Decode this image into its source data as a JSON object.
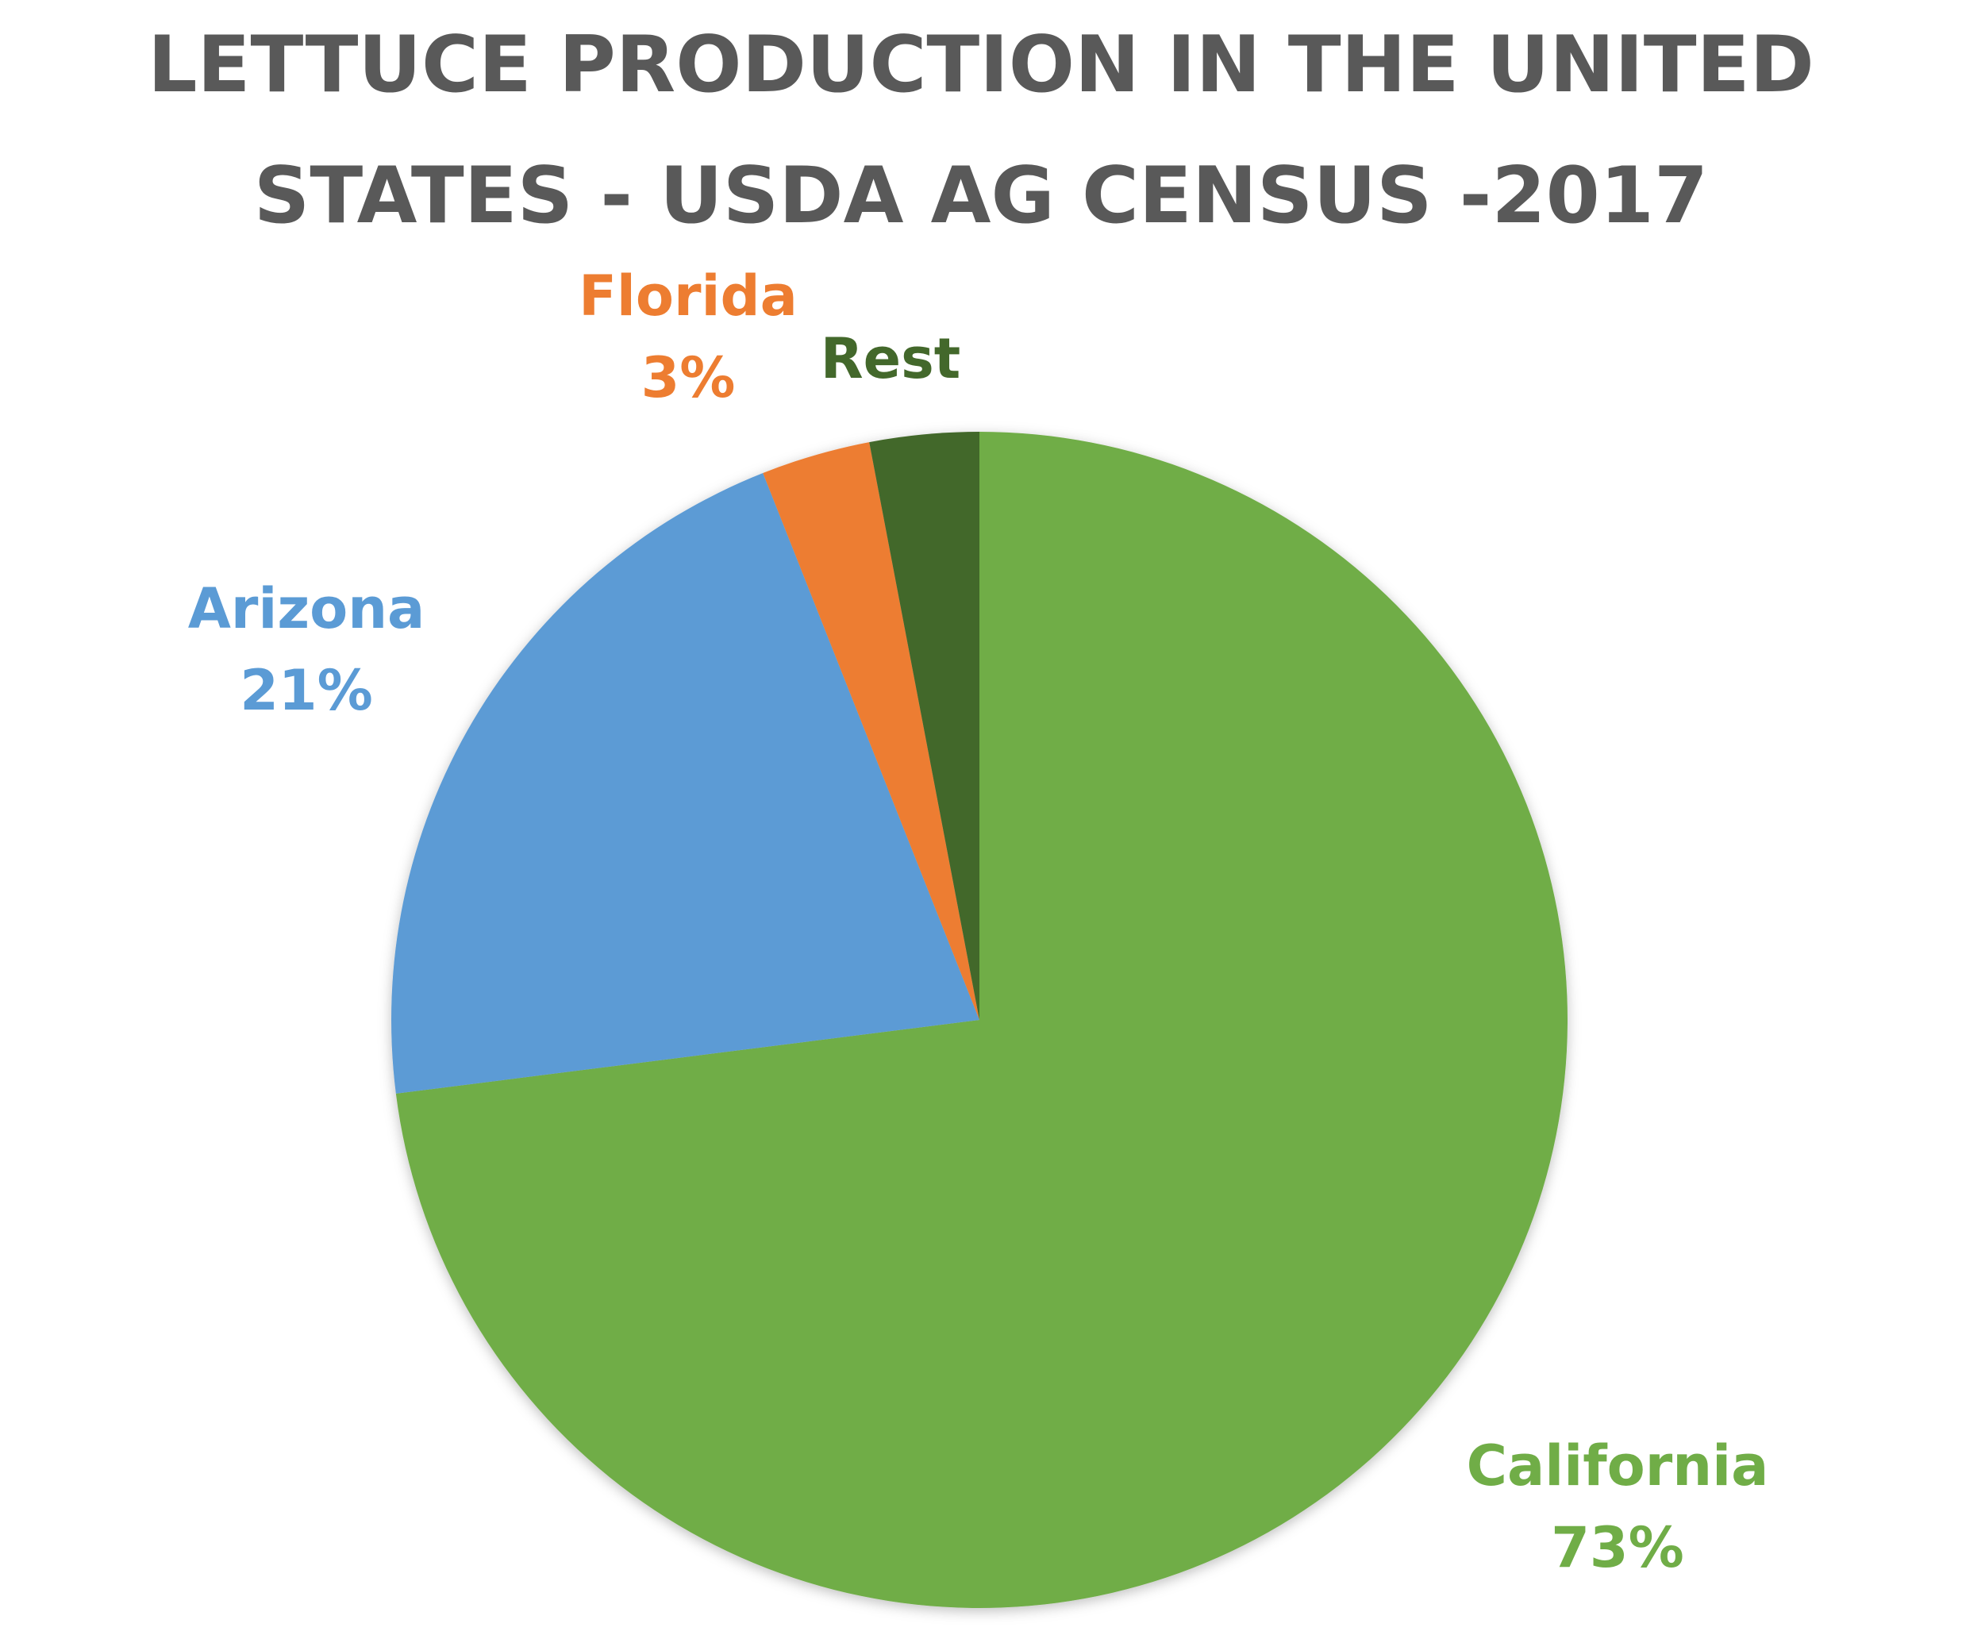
{
  "chart_data": {
    "type": "pie",
    "title": "LETTUCE PRODUCTION IN THE UNITED STATES - USDA AG CENSUS -2017",
    "categories": [
      "California",
      "Arizona",
      "Florida",
      "Rest"
    ],
    "values": [
      73,
      21,
      3,
      3
    ],
    "value_labels": [
      "73%",
      "21%",
      "3%",
      null
    ],
    "colors": [
      "#70ad47",
      "#5b9bd5",
      "#ed7d31",
      "#43682b"
    ]
  }
}
